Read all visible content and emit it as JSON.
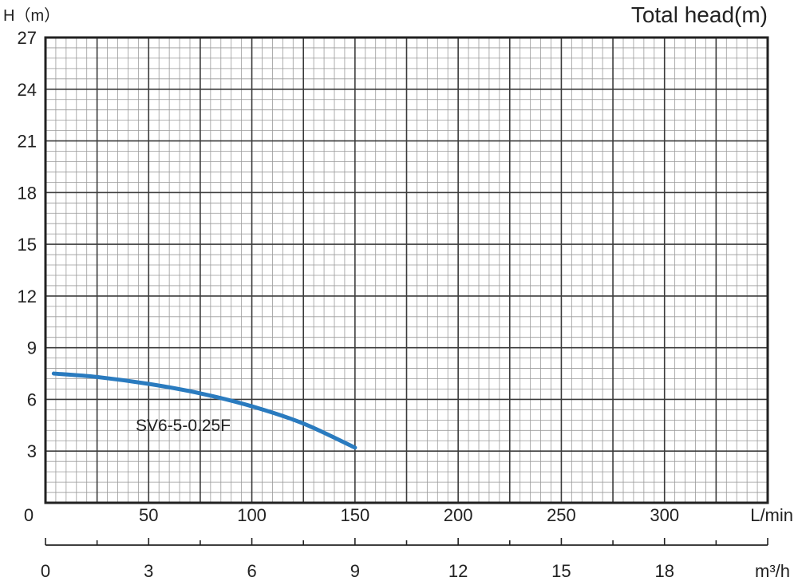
{
  "chart_data": {
    "type": "line",
    "title": "Total head(m)",
    "ylabel": "H（m）",
    "xlabel": "L/min",
    "x2label": "m³/h",
    "ylim": [
      0,
      27
    ],
    "xlim": [
      0,
      350
    ],
    "x2lim": [
      0,
      21
    ],
    "yticks": [
      3,
      6,
      9,
      12,
      15,
      18,
      21,
      24,
      27
    ],
    "xticks": [
      0,
      50,
      100,
      150,
      200,
      250,
      300
    ],
    "x2ticks": [
      0,
      3,
      6,
      9,
      12,
      15,
      18
    ],
    "grid": true,
    "colors": {
      "curve": "#2a7bbf",
      "grid_major": "#3a3a3a",
      "grid_minor": "#9a9a9a"
    },
    "series": [
      {
        "name": "SV6-5-0.25F",
        "x": [
          4,
          25,
          50,
          75,
          100,
          125,
          150
        ],
        "y": [
          7.5,
          7.3,
          6.9,
          6.35,
          5.6,
          4.6,
          3.2
        ]
      }
    ]
  }
}
